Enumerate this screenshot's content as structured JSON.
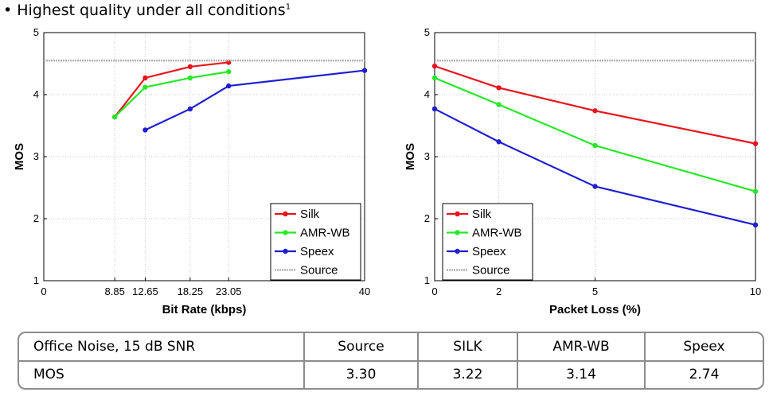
{
  "bullet": {
    "text": "• Highest quality under all conditions",
    "footnote": "1"
  },
  "chart_data": [
    {
      "type": "line",
      "xlabel": "Bit Rate (kbps)",
      "ylabel": "MOS",
      "xlim": [
        0,
        40
      ],
      "ylim": [
        1,
        5
      ],
      "xticks": [
        0,
        8.85,
        12.65,
        18.25,
        23.05,
        40
      ],
      "xtick_labels": [
        "0",
        "8.85",
        "12.65",
        "18.25",
        "23.05",
        "40"
      ],
      "yticks": [
        1,
        2,
        3,
        4,
        5
      ],
      "grid": true,
      "legend_position": "bottom-right",
      "series": [
        {
          "name": "Silk",
          "color": "#e8141e",
          "points": [
            [
              8.85,
              3.64
            ],
            [
              12.65,
              4.27
            ],
            [
              18.25,
              4.45
            ],
            [
              23.05,
              4.52
            ]
          ]
        },
        {
          "name": "AMR-WB",
          "color": "#27e827",
          "points": [
            [
              8.85,
              3.64
            ],
            [
              12.65,
              4.12
            ],
            [
              18.25,
              4.27
            ],
            [
              23.05,
              4.37
            ]
          ]
        },
        {
          "name": "Speex",
          "color": "#1f1fd2",
          "points": [
            [
              12.65,
              3.43
            ],
            [
              18.25,
              3.77
            ],
            [
              23.05,
              4.14
            ],
            [
              40,
              4.39
            ]
          ]
        },
        {
          "name": "Source",
          "color": "#b4b4b4",
          "dashed": true,
          "constant": 4.55
        }
      ]
    },
    {
      "type": "line",
      "xlabel": "Packet Loss (%)",
      "ylabel": "MOS",
      "xlim": [
        0,
        10
      ],
      "ylim": [
        1,
        5
      ],
      "xticks": [
        0,
        2,
        5,
        10
      ],
      "xtick_labels": [
        "0",
        "2",
        "5",
        "10"
      ],
      "yticks": [
        1,
        2,
        3,
        4,
        5
      ],
      "grid": true,
      "legend_position": "bottom-left",
      "series": [
        {
          "name": "Silk",
          "color": "#e8141e",
          "points": [
            [
              0,
              4.46
            ],
            [
              2,
              4.11
            ],
            [
              5,
              3.74
            ],
            [
              10,
              3.21
            ]
          ]
        },
        {
          "name": "AMR-WB",
          "color": "#27e827",
          "points": [
            [
              0,
              4.27
            ],
            [
              2,
              3.84
            ],
            [
              5,
              3.18
            ],
            [
              10,
              2.44
            ]
          ]
        },
        {
          "name": "Speex",
          "color": "#1f1fd2",
          "points": [
            [
              0,
              3.77
            ],
            [
              2,
              3.24
            ],
            [
              5,
              2.52
            ],
            [
              10,
              1.9
            ]
          ]
        },
        {
          "name": "Source",
          "color": "#b4b4b4",
          "dashed": true,
          "constant": 4.55
        }
      ]
    }
  ],
  "table": {
    "header": [
      "Office Noise, 15 dB SNR",
      "Source",
      "SILK",
      "AMR-WB",
      "Speex"
    ],
    "rows": [
      [
        "MOS",
        "3.30",
        "3.22",
        "3.14",
        "2.74"
      ]
    ]
  }
}
